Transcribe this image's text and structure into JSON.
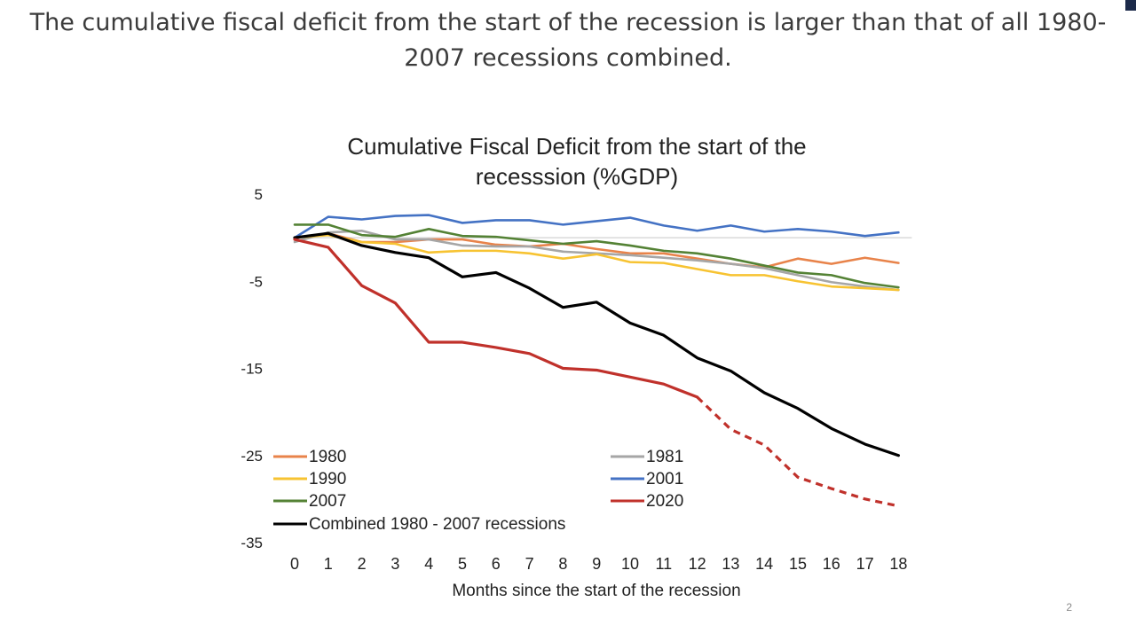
{
  "slide": {
    "title": "The cumulative fiscal deficit from the start of the recession is larger than that of all 1980-\n2007 recessions combined.",
    "page_number": "2"
  },
  "chart_data": {
    "type": "line",
    "title": "Cumulative Fiscal Deficit from the start of the\nrecesssion (%GDP)",
    "xlabel": "Months since the start of the recession",
    "ylabel": "",
    "x": [
      0,
      1,
      2,
      3,
      4,
      5,
      6,
      7,
      8,
      9,
      10,
      11,
      12,
      13,
      14,
      15,
      16,
      17,
      18
    ],
    "ylim": [
      -35,
      5
    ],
    "yticks": [
      5,
      -5,
      -15,
      -25,
      -35
    ],
    "grid": false,
    "legend_position": "bottom-left, inside plot",
    "series": [
      {
        "name": "1980",
        "color": "#e8834a",
        "values": [
          0,
          0.5,
          -0.5,
          -0.5,
          -0.2,
          -0.2,
          -0.8,
          -1.0,
          -0.7,
          -1.3,
          -1.8,
          -1.8,
          -2.4,
          -3.0,
          -3.4,
          -2.4,
          -3.0,
          -2.3,
          -2.9
        ]
      },
      {
        "name": "1981",
        "color": "#a6a6a6",
        "values": [
          -0.5,
          0.6,
          0.8,
          -0.2,
          -0.2,
          -0.9,
          -1.0,
          -1.0,
          -1.6,
          -1.8,
          -2.0,
          -2.3,
          -2.6,
          -3.0,
          -3.5,
          -4.3,
          -5.1,
          -5.6,
          -6.0
        ]
      },
      {
        "name": "1990",
        "color": "#f7c332",
        "values": [
          0,
          0.3,
          -0.5,
          -0.7,
          -1.7,
          -1.5,
          -1.5,
          -1.8,
          -2.4,
          -1.9,
          -2.8,
          -2.9,
          -3.6,
          -4.3,
          -4.3,
          -5.0,
          -5.6,
          -5.8,
          -6.0
        ]
      },
      {
        "name": "2001",
        "color": "#4472c4",
        "values": [
          0,
          2.4,
          2.1,
          2.5,
          2.6,
          1.7,
          2.0,
          2.0,
          1.5,
          1.9,
          2.3,
          1.4,
          0.8,
          1.4,
          0.7,
          1.0,
          0.7,
          0.2,
          0.6
        ]
      },
      {
        "name": "2007",
        "color": "#548235",
        "values": [
          1.5,
          1.5,
          0.3,
          0.1,
          1.0,
          0.2,
          0.1,
          -0.3,
          -0.7,
          -0.4,
          -0.9,
          -1.5,
          -1.8,
          -2.4,
          -3.2,
          -4.0,
          -4.3,
          -5.2,
          -5.7
        ]
      },
      {
        "name": "2020",
        "color": "#c0312b",
        "values": [
          -0.2,
          -1.1,
          -5.5,
          -7.5,
          -12.0,
          -12.0,
          -12.6,
          -13.3,
          -15.0,
          -15.2,
          -16.0,
          -16.8,
          -18.3,
          -22.0,
          -23.8,
          -27.5,
          -28.8,
          -30.0,
          -30.8
        ],
        "dashed_from_index": 12
      },
      {
        "name": "Combined 1980 - 2007 recessions",
        "color": "#000000",
        "values": [
          0,
          0.5,
          -0.9,
          -1.7,
          -2.3,
          -4.5,
          -4.0,
          -5.8,
          -8.0,
          -7.4,
          -9.8,
          -11.2,
          -13.8,
          -15.3,
          -17.8,
          -19.6,
          -21.9,
          -23.7,
          -25.0
        ]
      }
    ]
  }
}
